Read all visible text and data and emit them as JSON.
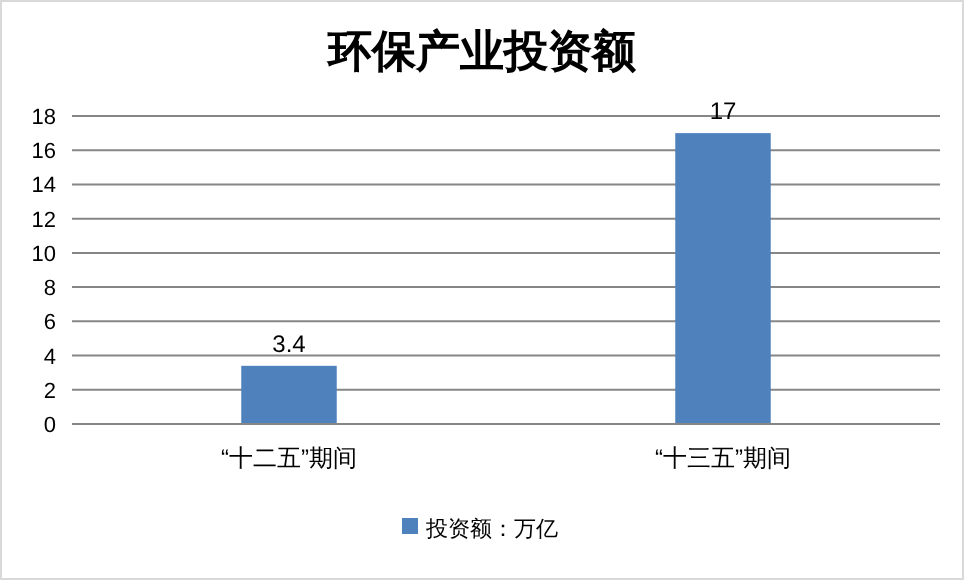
{
  "chart_data": {
    "type": "bar",
    "title": "环保产业投资额",
    "categories": [
      "“十二五”期间",
      "“十三五”期间"
    ],
    "series": [
      {
        "name": "投资额：万亿",
        "color": "#4f81bd",
        "values": [
          3.4,
          17
        ]
      }
    ],
    "ylim": [
      0,
      18
    ],
    "yticks": [
      0,
      2,
      4,
      6,
      8,
      10,
      12,
      14,
      16,
      18
    ],
    "grid": "y",
    "data_labels": true,
    "legend": "bottom"
  }
}
